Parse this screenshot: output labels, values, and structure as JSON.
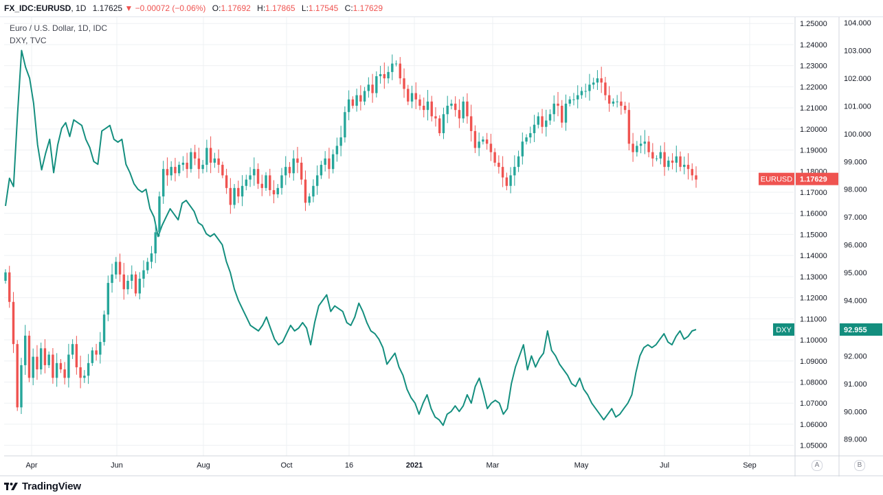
{
  "header": {
    "symbol": "FX_IDC:EURUSD",
    "interval": "1D",
    "last": "1.17625",
    "arrow": "▼",
    "change": "−0.00072 (−0.06%)",
    "o_label": "O:",
    "o_value": "1.17692",
    "h_label": "H:",
    "h_value": "1.17865",
    "l_label": "L:",
    "l_value": "1.17545",
    "c_label": "C:",
    "c_value": "1.17629"
  },
  "legend": {
    "main_title": "Euro / U.S. Dollar, 1D, IDC",
    "compare_title": "DXY, TVC"
  },
  "footer": {
    "brand": "TradingView",
    "scale_a": "A",
    "scale_b": "B"
  },
  "colors": {
    "up": "#26a69a",
    "down": "#ef5350",
    "dxy": "#138e7e",
    "grid": "#eef0f3"
  },
  "chart_data": {
    "type": "candlestick-with-comparison-line",
    "title": "Euro / U.S. Dollar, 1D, IDC",
    "x_labels": [
      "Apr",
      "Jun",
      "Aug",
      "Oct",
      "16",
      "2021",
      "Mar",
      "May",
      "Jul",
      "Sep"
    ],
    "right_axis_eurusd": {
      "ylim": [
        1.045,
        1.253
      ],
      "ticks": [
        "1.25000",
        "1.24000",
        "1.23000",
        "1.22000",
        "1.21000",
        "1.20000",
        "1.19000",
        "1.18000",
        "1.17000",
        "1.16000",
        "1.15000",
        "1.14000",
        "1.13000",
        "1.12000",
        "1.11000",
        "1.10000",
        "1.09000",
        "1.08000",
        "1.07000",
        "1.06000",
        "1.05000"
      ]
    },
    "right_axis_dxy": {
      "ylim": [
        88.4,
        104.2
      ],
      "ticks": [
        "104.000",
        "103.000",
        "102.000",
        "101.000",
        "100.000",
        "99.000",
        "98.000",
        "97.000",
        "96.000",
        "95.000",
        "94.000",
        "93.000",
        "92.000",
        "91.000",
        "90.000",
        "89.000"
      ]
    },
    "series": [
      {
        "name": "EURUSD",
        "kind": "candlestick-close-path",
        "last_label": "1.17629",
        "badge": "EURUSD",
        "closes": [
          1.132,
          1.118,
          1.098,
          1.068,
          1.088,
          1.102,
          1.082,
          1.092,
          1.086,
          1.096,
          1.088,
          1.093,
          1.082,
          1.089,
          1.086,
          1.082,
          1.093,
          1.098,
          1.087,
          1.082,
          1.083,
          1.089,
          1.095,
          1.093,
          1.099,
          1.112,
          1.127,
          1.131,
          1.137,
          1.131,
          1.124,
          1.128,
          1.131,
          1.122,
          1.129,
          1.133,
          1.137,
          1.141,
          1.151,
          1.168,
          1.181,
          1.178,
          1.182,
          1.179,
          1.183,
          1.184,
          1.181,
          1.189,
          1.186,
          1.181,
          1.183,
          1.191,
          1.184,
          1.186,
          1.183,
          1.178,
          1.172,
          1.164,
          1.172,
          1.168,
          1.173,
          1.176,
          1.178,
          1.181,
          1.174,
          1.172,
          1.178,
          1.171,
          1.169,
          1.172,
          1.178,
          1.182,
          1.179,
          1.186,
          1.184,
          1.176,
          1.165,
          1.168,
          1.173,
          1.178,
          1.183,
          1.186,
          1.181,
          1.188,
          1.192,
          1.196,
          1.208,
          1.214,
          1.211,
          1.216,
          1.213,
          1.218,
          1.221,
          1.217,
          1.225,
          1.226,
          1.224,
          1.227,
          1.231,
          1.231,
          1.224,
          1.219,
          1.213,
          1.217,
          1.214,
          1.211,
          1.209,
          1.213,
          1.206,
          1.205,
          1.198,
          1.207,
          1.211,
          1.212,
          1.209,
          1.205,
          1.213,
          1.206,
          1.199,
          1.191,
          1.194,
          1.195,
          1.193,
          1.189,
          1.184,
          1.182,
          1.177,
          1.173,
          1.178,
          1.182,
          1.187,
          1.194,
          1.196,
          1.198,
          1.202,
          1.206,
          1.201,
          1.204,
          1.207,
          1.212,
          1.211,
          1.203,
          1.212,
          1.214,
          1.214,
          1.216,
          1.218,
          1.218,
          1.221,
          1.222,
          1.224,
          1.222,
          1.216,
          1.212,
          1.213,
          1.213,
          1.211,
          1.209,
          1.193,
          1.189,
          1.192,
          1.193,
          1.194,
          1.189,
          1.186,
          1.186,
          1.189,
          1.182,
          1.185,
          1.184,
          1.187,
          1.182,
          1.183,
          1.181,
          1.178,
          1.176
        ]
      },
      {
        "name": "DXY",
        "kind": "line",
        "last_label": "92.955",
        "badge": "DXY",
        "values": [
          97.4,
          98.4,
          98.1,
          100.7,
          103.0,
          102.4,
          102.0,
          101.1,
          99.6,
          98.7,
          99.3,
          99.8,
          98.6,
          99.6,
          100.2,
          100.4,
          99.9,
          100.5,
          100.4,
          100.3,
          99.8,
          99.5,
          99.0,
          98.9,
          100.1,
          100.2,
          100.3,
          99.8,
          99.7,
          99.8,
          98.9,
          98.6,
          98.2,
          98.0,
          97.9,
          98.0,
          97.3,
          97.0,
          96.3,
          96.7,
          97.0,
          97.3,
          97.1,
          96.9,
          97.5,
          97.6,
          97.4,
          97.2,
          96.8,
          96.7,
          96.4,
          96.3,
          96.4,
          96.2,
          96.0,
          95.4,
          95.0,
          94.4,
          94.0,
          93.7,
          93.4,
          93.1,
          93.0,
          92.9,
          93.1,
          93.4,
          93.0,
          92.6,
          92.4,
          92.5,
          92.8,
          93.1,
          92.9,
          93.0,
          93.2,
          93.0,
          92.4,
          93.2,
          93.8,
          94.0,
          94.2,
          93.6,
          93.8,
          93.7,
          93.6,
          93.2,
          93.1,
          93.4,
          93.9,
          93.6,
          93.2,
          92.9,
          92.8,
          92.6,
          92.3,
          91.7,
          91.9,
          92.1,
          91.6,
          91.3,
          90.8,
          90.5,
          90.3,
          89.9,
          90.3,
          90.6,
          90.1,
          89.8,
          89.7,
          89.5,
          89.9,
          90.0,
          90.2,
          90.0,
          90.2,
          90.6,
          90.3,
          90.9,
          91.2,
          90.7,
          90.1,
          90.3,
          90.4,
          90.3,
          89.9,
          90.1,
          91.0,
          91.6,
          92.0,
          92.4,
          91.5,
          92.0,
          91.6,
          91.9,
          92.1,
          92.9,
          92.2,
          92.0,
          91.7,
          91.5,
          91.3,
          91.0,
          90.9,
          91.2,
          90.8,
          90.6,
          90.3,
          90.1,
          89.9,
          89.7,
          89.9,
          90.1,
          89.8,
          89.9,
          90.1,
          90.3,
          90.6,
          91.4,
          92.0,
          92.3,
          92.4,
          92.3,
          92.4,
          92.6,
          92.8,
          92.5,
          92.4,
          92.7,
          92.9,
          92.6,
          92.7,
          92.9,
          92.95
        ]
      }
    ]
  }
}
